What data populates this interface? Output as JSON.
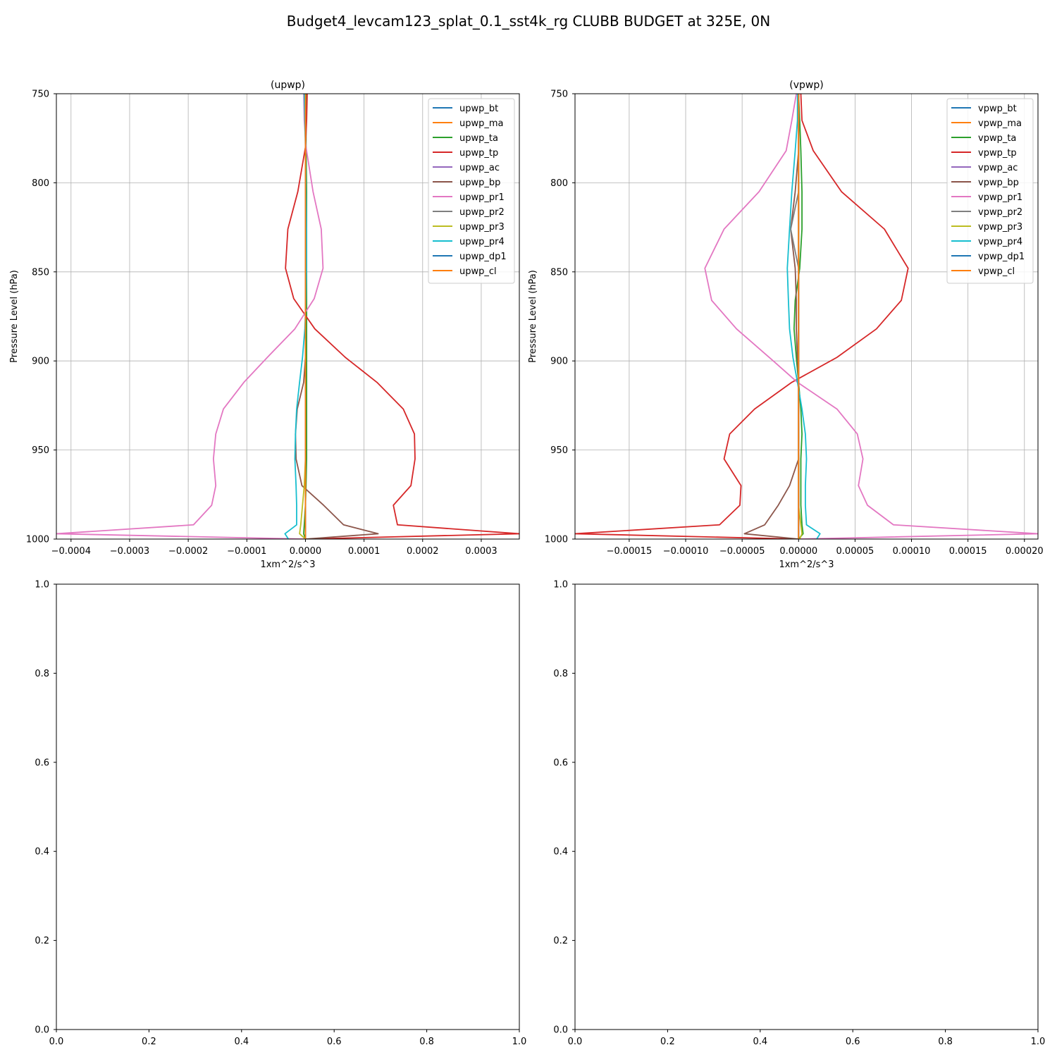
{
  "figure": {
    "suptitle": "Budget4_levcam123_splat_0.1_sst4k_rg CLUBB BUDGET at 325E, 0N"
  },
  "colors": [
    "#1f77b4",
    "#ff7f0e",
    "#2ca02c",
    "#d62728",
    "#9467bd",
    "#8c564b",
    "#e377c2",
    "#7f7f7f",
    "#bcbd22",
    "#17becf",
    "#1f77b4",
    "#ff7f0e"
  ],
  "chart_data": [
    {
      "type": "line",
      "title": "(upwp)",
      "xlabel": "1xm^2/s^3",
      "ylabel": "Pressure Level (hPa)",
      "xlim": [
        -0.000425,
        0.000365
      ],
      "ylim": [
        1000,
        750
      ],
      "y_inverted": true,
      "grid": true,
      "legend": "top-right",
      "xticks": [
        -0.0004,
        -0.0003,
        -0.0002,
        -0.0001,
        0.0,
        0.0001,
        0.0002,
        0.0003
      ],
      "xtick_labels": [
        "−0.0004",
        "−0.0003",
        "−0.0002",
        "−0.0001",
        "0.0000",
        "0.0001",
        "0.0002",
        "0.0003"
      ],
      "yticks": [
        750,
        800,
        850,
        900,
        950,
        1000
      ],
      "ytick_labels": [
        "750",
        "800",
        "850",
        "900",
        "950",
        "1000"
      ],
      "levels": [
        750,
        765,
        780,
        805,
        826,
        848,
        865,
        882,
        898,
        912,
        927,
        941,
        955,
        970,
        981,
        992,
        997,
        1000
      ],
      "series": [
        {
          "name": "upwp_bt",
          "values": [
            0,
            0,
            0,
            0,
            0,
            0,
            0,
            0,
            0,
            0,
            0,
            0,
            0,
            0,
            0,
            0,
            0,
            0
          ]
        },
        {
          "name": "upwp_ma",
          "values": [
            0,
            0,
            0,
            0,
            0,
            0,
            0,
            0,
            0,
            0,
            0,
            0,
            0,
            0,
            0,
            0,
            0,
            0
          ]
        },
        {
          "name": "upwp_ta",
          "values": [
            1e-06,
            1e-06,
            1e-06,
            2e-06,
            2e-06,
            2e-06,
            2e-06,
            2e-06,
            2e-06,
            2e-06,
            2e-06,
            2e-06,
            2e-06,
            1e-06,
            0,
            -2e-06,
            -3e-06,
            0
          ]
        },
        {
          "name": "upwp_tp",
          "values": [
            3e-06,
            2e-06,
            0,
            -1.3e-05,
            -3e-05,
            -3.4e-05,
            -2e-05,
            1.6e-05,
            6.8e-05,
            0.000122,
            0.000167,
            0.000186,
            0.000187,
            0.00018,
            0.00015,
            0.000157,
            0.000365,
            0
          ]
        },
        {
          "name": "upwp_ac",
          "values": [
            0,
            0,
            0,
            0,
            0,
            0,
            0,
            0,
            0,
            0,
            0,
            0,
            0,
            0,
            0,
            0,
            0,
            0
          ]
        },
        {
          "name": "upwp_bp",
          "values": [
            0,
            0,
            0,
            0,
            0,
            0,
            0,
            0,
            0,
            -3e-06,
            -1.4e-05,
            -1.7e-05,
            -1.6e-05,
            -6e-06,
            3.1e-05,
            6.5e-05,
            0.000124,
            0
          ]
        },
        {
          "name": "upwp_pr1",
          "values": [
            -3e-06,
            -2e-06,
            1e-06,
            1.3e-05,
            2.7e-05,
            3e-05,
            1.5e-05,
            -1.8e-05,
            -6.5e-05,
            -0.000105,
            -0.00014,
            -0.000153,
            -0.000157,
            -0.000153,
            -0.00016,
            -0.000191,
            -0.000425,
            0
          ]
        },
        {
          "name": "upwp_pr2",
          "values": [
            0,
            0,
            0,
            0,
            0,
            0,
            0,
            0,
            0,
            0,
            0,
            0,
            0,
            0,
            0,
            0,
            0,
            0
          ]
        },
        {
          "name": "upwp_pr3",
          "values": [
            0,
            0,
            0,
            0,
            0,
            0,
            0,
            0,
            0,
            0,
            0,
            0,
            0,
            -2e-06,
            -5e-06,
            -8e-06,
            -1e-05,
            0
          ]
        },
        {
          "name": "upwp_pr4",
          "values": [
            -2e-06,
            -1e-06,
            0,
            1e-06,
            2e-06,
            2e-06,
            1e-06,
            -1e-06,
            -5e-06,
            -1e-05,
            -1.5e-05,
            -1.7e-05,
            -1.8e-05,
            -1.6e-05,
            -1.5e-05,
            -1.5e-05,
            -3.5e-05,
            -2.9e-05
          ]
        },
        {
          "name": "upwp_dp1",
          "values": [
            0,
            0,
            0,
            0,
            0,
            0,
            0,
            0,
            0,
            0,
            0,
            0,
            0,
            0,
            0,
            0,
            0,
            0
          ]
        },
        {
          "name": "upwp_cl",
          "values": [
            0,
            0,
            0,
            0,
            0,
            0,
            0,
            0,
            0,
            0,
            0,
            0,
            0,
            0,
            0,
            0,
            0,
            0
          ]
        }
      ]
    },
    {
      "type": "line",
      "title": "(vpwp)",
      "xlabel": "1xm^2/s^3",
      "ylabel": "Pressure Level (hPa)",
      "xlim": [
        -0.000198,
        0.000212
      ],
      "ylim": [
        1000,
        750
      ],
      "y_inverted": true,
      "grid": true,
      "legend": "top-right",
      "xticks": [
        -0.00015,
        -0.0001,
        -5e-05,
        0.0,
        5e-05,
        0.0001,
        0.00015,
        0.0002
      ],
      "xtick_labels": [
        "−0.00015",
        "−0.00010",
        "−0.00005",
        "0.00000",
        "0.00005",
        "0.00010",
        "0.00015",
        "0.00020"
      ],
      "yticks": [
        750,
        800,
        850,
        900,
        950,
        1000
      ],
      "ytick_labels": [
        "750",
        "800",
        "850",
        "900",
        "950",
        "1000"
      ],
      "levels": [
        750,
        765,
        782,
        805,
        826,
        848,
        866,
        882,
        898,
        912,
        927,
        941,
        955,
        970,
        981,
        992,
        997,
        1000
      ],
      "series": [
        {
          "name": "vpwp_bt",
          "values": [
            0,
            0,
            0,
            0,
            0,
            0,
            0,
            0,
            0,
            0,
            0,
            0,
            0,
            0,
            0,
            0,
            0,
            0
          ]
        },
        {
          "name": "vpwp_ma",
          "values": [
            0,
            0,
            0,
            0,
            0,
            0,
            0,
            0,
            0,
            0,
            0,
            0,
            0,
            0,
            0,
            0,
            0,
            0
          ]
        },
        {
          "name": "vpwp_ta",
          "values": [
            0,
            1e-06,
            2e-06,
            3e-06,
            3e-06,
            1e-06,
            -3e-06,
            -4e-06,
            -2e-06,
            0,
            2e-06,
            3e-06,
            2e-06,
            2e-06,
            2e-06,
            3e-06,
            4e-06,
            0
          ]
        },
        {
          "name": "vpwp_tp",
          "values": [
            2e-06,
            3e-06,
            1.3e-05,
            3.8e-05,
            7.6e-05,
            9.7e-05,
            9.1e-05,
            6.9e-05,
            3.4e-05,
            -6e-06,
            -3.9e-05,
            -6.1e-05,
            -6.6e-05,
            -5.1e-05,
            -5.2e-05,
            -7e-05,
            -0.000198,
            0
          ]
        },
        {
          "name": "vpwp_ac",
          "values": [
            0,
            0,
            0,
            0,
            0,
            0,
            0,
            0,
            0,
            0,
            0,
            0,
            0,
            0,
            0,
            0,
            0,
            0
          ]
        },
        {
          "name": "vpwp_bp",
          "values": [
            0,
            0,
            0,
            -3e-06,
            -7e-06,
            -3e-06,
            -2e-06,
            -2e-06,
            -1e-06,
            0,
            0,
            0,
            0,
            -8e-06,
            -1.8e-05,
            -3e-05,
            -4.8e-05,
            0
          ]
        },
        {
          "name": "vpwp_pr1",
          "values": [
            -2e-06,
            -6e-06,
            -1.1e-05,
            -3.5e-05,
            -6.6e-05,
            -8.3e-05,
            -7.7e-05,
            -5.5e-05,
            -2.6e-05,
            -1e-06,
            3.4e-05,
            5.2e-05,
            5.7e-05,
            5.3e-05,
            6.1e-05,
            8.4e-05,
            0.000212,
            0
          ]
        },
        {
          "name": "vpwp_pr2",
          "values": [
            0,
            0,
            0,
            0,
            -7e-06,
            0,
            0,
            0,
            0,
            0,
            0,
            0,
            0,
            0,
            0,
            0,
            0,
            0
          ]
        },
        {
          "name": "vpwp_pr3",
          "values": [
            0,
            0,
            0,
            0,
            0,
            0,
            0,
            0,
            0,
            0,
            0,
            0,
            0,
            0,
            0,
            2e-06,
            3e-06,
            1e-06
          ]
        },
        {
          "name": "vpwp_pr4",
          "values": [
            -1e-06,
            -1e-06,
            -3e-06,
            -6e-06,
            -8e-06,
            -1e-05,
            -9e-06,
            -8e-06,
            -5e-06,
            -1e-06,
            3e-06,
            6e-06,
            7e-06,
            6e-06,
            6e-06,
            7e-06,
            1.9e-05,
            1.6e-05
          ]
        },
        {
          "name": "vpwp_dp1",
          "values": [
            0,
            0,
            0,
            0,
            0,
            0,
            0,
            0,
            0,
            0,
            0,
            0,
            0,
            0,
            0,
            0,
            0,
            0
          ]
        },
        {
          "name": "vpwp_cl",
          "values": [
            0,
            0,
            0,
            0,
            0,
            0,
            0,
            0,
            0,
            0,
            0,
            0,
            0,
            0,
            0,
            0,
            0,
            0
          ]
        }
      ]
    },
    {
      "type": "line",
      "title": "",
      "xlim": [
        0,
        1
      ],
      "ylim": [
        0,
        1
      ],
      "xticks": [
        0,
        0.2,
        0.4,
        0.6,
        0.8,
        1
      ],
      "xtick_labels": [
        "0.0",
        "0.2",
        "0.4",
        "0.6",
        "0.8",
        "1.0"
      ],
      "yticks": [
        0,
        0.2,
        0.4,
        0.6,
        0.8,
        1
      ],
      "ytick_labels": [
        "0.0",
        "0.2",
        "0.4",
        "0.6",
        "0.8",
        "1.0"
      ],
      "series": []
    },
    {
      "type": "line",
      "title": "",
      "xlim": [
        0,
        1
      ],
      "ylim": [
        0,
        1
      ],
      "xticks": [
        0,
        0.2,
        0.4,
        0.6,
        0.8,
        1
      ],
      "xtick_labels": [
        "0.0",
        "0.2",
        "0.4",
        "0.6",
        "0.8",
        "1.0"
      ],
      "yticks": [
        0,
        0.2,
        0.4,
        0.6,
        0.8,
        1
      ],
      "ytick_labels": [
        "0.0",
        "0.2",
        "0.4",
        "0.6",
        "0.8",
        "1.0"
      ],
      "series": []
    }
  ]
}
